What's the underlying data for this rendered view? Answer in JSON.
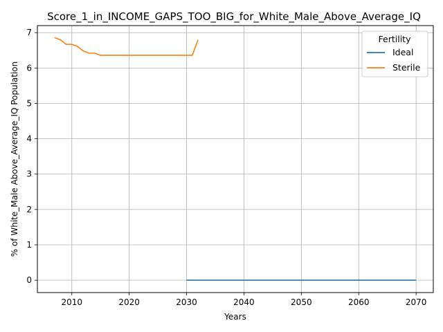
{
  "chart_data": {
    "type": "line",
    "title": "Score_1_in_INCOME_GAPS_TOO_BIG_for_White_Male_Above_Average_IQ",
    "xlabel": "Years",
    "ylabel": "% of White_Male Above_Average_IQ Population",
    "xlim": [
      2004,
      2073
    ],
    "ylim": [
      -0.35,
      7.2
    ],
    "xticks": [
      2010,
      2020,
      2030,
      2040,
      2050,
      2060,
      2070
    ],
    "yticks": [
      0,
      1,
      2,
      3,
      4,
      5,
      6,
      7
    ],
    "grid": true,
    "legend": {
      "title": "Fertility",
      "placement": "top-right"
    },
    "series": [
      {
        "name": "Ideal",
        "color": "#1f77b4",
        "x": [
          2030,
          2035,
          2040,
          2045,
          2050,
          2055,
          2060,
          2065,
          2070
        ],
        "y": [
          0,
          0,
          0,
          0,
          0,
          0,
          0,
          0,
          0
        ]
      },
      {
        "name": "Sterile",
        "color": "#ff7f0e",
        "x": [
          2007,
          2008,
          2009,
          2010,
          2011,
          2012,
          2013,
          2014,
          2015,
          2016,
          2017,
          2018,
          2019,
          2020,
          2021,
          2022,
          2023,
          2024,
          2025,
          2026,
          2027,
          2028,
          2029,
          2030,
          2031,
          2032
        ],
        "y": [
          6.86,
          6.8,
          6.67,
          6.67,
          6.61,
          6.48,
          6.42,
          6.42,
          6.36,
          6.36,
          6.36,
          6.36,
          6.36,
          6.36,
          6.36,
          6.36,
          6.36,
          6.36,
          6.36,
          6.36,
          6.36,
          6.36,
          6.36,
          6.36,
          6.36,
          6.8
        ]
      }
    ]
  }
}
